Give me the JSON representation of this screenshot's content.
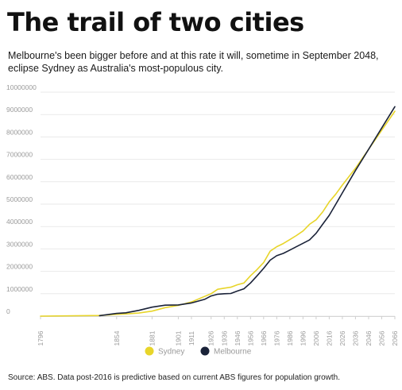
{
  "header": {
    "title": "The trail of two cities",
    "subtitle": "Melbourne's been bigger before and at this rate it will, sometime in September 2048, eclipse Sydney as Australia's most-populous city."
  },
  "footer": {
    "source": "Source: ABS. Data post-2016 is predictive based on current ABS figures for population growth."
  },
  "chart_data": {
    "type": "line",
    "title": "The trail of two cities",
    "xlabel": "",
    "ylabel": "",
    "xlim": [
      1796,
      2066
    ],
    "ylim": [
      0,
      10000000
    ],
    "y_ticks": [
      0,
      1000000,
      2000000,
      3000000,
      4000000,
      5000000,
      6000000,
      7000000,
      8000000,
      9000000,
      10000000
    ],
    "x_ticks": [
      1796,
      1854,
      1881,
      1901,
      1911,
      1926,
      1936,
      1946,
      1956,
      1966,
      1976,
      1986,
      1996,
      2006,
      2016,
      2026,
      2036,
      2046,
      2056,
      2066
    ],
    "grid": true,
    "legend_position": "bottom",
    "series": [
      {
        "name": "Sydney",
        "color": "#e8d52a",
        "points": [
          [
            1796,
            0
          ],
          [
            1841,
            30000
          ],
          [
            1854,
            80000
          ],
          [
            1861,
            100000
          ],
          [
            1871,
            140000
          ],
          [
            1881,
            225000
          ],
          [
            1891,
            380000
          ],
          [
            1901,
            480000
          ],
          [
            1911,
            630000
          ],
          [
            1921,
            880000
          ],
          [
            1926,
            1000000
          ],
          [
            1931,
            1200000
          ],
          [
            1936,
            1250000
          ],
          [
            1941,
            1290000
          ],
          [
            1946,
            1400000
          ],
          [
            1951,
            1480000
          ],
          [
            1956,
            1800000
          ],
          [
            1961,
            2080000
          ],
          [
            1966,
            2390000
          ],
          [
            1971,
            2900000
          ],
          [
            1976,
            3100000
          ],
          [
            1981,
            3240000
          ],
          [
            1986,
            3420000
          ],
          [
            1991,
            3600000
          ],
          [
            1996,
            3800000
          ],
          [
            2001,
            4100000
          ],
          [
            2006,
            4300000
          ],
          [
            2011,
            4650000
          ],
          [
            2016,
            5100000
          ],
          [
            2021,
            5450000
          ],
          [
            2026,
            5850000
          ],
          [
            2036,
            6600000
          ],
          [
            2046,
            7450000
          ],
          [
            2056,
            8300000
          ],
          [
            2066,
            9150000
          ]
        ]
      },
      {
        "name": "Melbourne",
        "color": "#1a2238",
        "points": [
          [
            1841,
            20000
          ],
          [
            1854,
            120000
          ],
          [
            1861,
            150000
          ],
          [
            1871,
            260000
          ],
          [
            1881,
            400000
          ],
          [
            1891,
            490000
          ],
          [
            1901,
            500000
          ],
          [
            1911,
            590000
          ],
          [
            1921,
            750000
          ],
          [
            1926,
            900000
          ],
          [
            1931,
            980000
          ],
          [
            1936,
            1000000
          ],
          [
            1941,
            1010000
          ],
          [
            1946,
            1120000
          ],
          [
            1951,
            1220000
          ],
          [
            1956,
            1480000
          ],
          [
            1961,
            1800000
          ],
          [
            1966,
            2130000
          ],
          [
            1971,
            2500000
          ],
          [
            1976,
            2700000
          ],
          [
            1981,
            2800000
          ],
          [
            1986,
            2950000
          ],
          [
            1991,
            3100000
          ],
          [
            1996,
            3250000
          ],
          [
            2001,
            3400000
          ],
          [
            2006,
            3700000
          ],
          [
            2011,
            4100000
          ],
          [
            2016,
            4500000
          ],
          [
            2021,
            5000000
          ],
          [
            2026,
            5500000
          ],
          [
            2036,
            6500000
          ],
          [
            2046,
            7450000
          ],
          [
            2056,
            8400000
          ],
          [
            2066,
            9350000
          ]
        ]
      }
    ]
  }
}
